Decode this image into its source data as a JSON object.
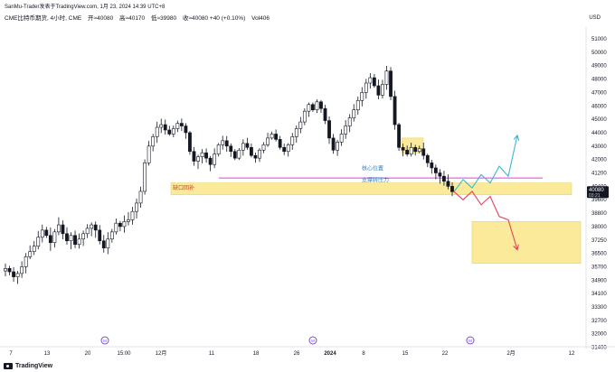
{
  "header": {
    "publisher": "SanMu-Trader发表于TradingView.com, 1月 23, 2024 14:39 UTC+8",
    "symbol": "CME比特币期货, 4小时, CME",
    "open": "开≈40080",
    "high": "高≈40170",
    "low": "低≈39980",
    "close": "收≈40080 +40 (+0.10%)",
    "volume": "Vol406",
    "currency": "USD"
  },
  "footer": {
    "logo_text": "TradingView"
  },
  "colors": {
    "candle": "#131722",
    "zone_fill": "#fbe88f",
    "level_line": "#e040d0",
    "projection_up": "#39b7d6",
    "projection_mid": "#3eb89a",
    "projection_down": "#e0455a",
    "price_badge": "#131722",
    "event_marker": "#7b4fcf"
  },
  "chart_data": {
    "type": "candlestick",
    "title": "CME比特币期货, 4小时, CME",
    "y_ticks": [
      51000,
      50000,
      49000,
      48000,
      47000,
      46000,
      45000,
      44000,
      43000,
      42000,
      41200,
      40400,
      39600,
      38800,
      38000,
      37250,
      36500,
      35700,
      34900,
      34100,
      33300,
      32700,
      32000,
      31400
    ],
    "ylim": [
      31400,
      51000
    ],
    "x_ticks": [
      "7",
      "13",
      "20",
      "15:00",
      "12月",
      "11",
      "18",
      "26",
      "2024",
      "8",
      "15",
      "22",
      "2月",
      "12"
    ],
    "x_marker_labels": [
      "7",
      "13",
      "20",
      "15:00",
      "12月",
      "11",
      "18",
      "26",
      "2024",
      "8",
      "15",
      "22",
      "2月",
      "12"
    ],
    "event_marker_symbol": "M",
    "price_path": [
      35600,
      35400,
      35100,
      35300,
      35700,
      36300,
      36600,
      36900,
      37400,
      37800,
      37500,
      37100,
      37700,
      38100,
      37600,
      37200,
      37500,
      37000,
      37300,
      37600,
      37900,
      38100,
      37800,
      37200,
      36800,
      37300,
      37700,
      38200,
      38000,
      38300,
      38400,
      38900,
      39400,
      40100,
      41800,
      43000,
      43700,
      44400,
      44600,
      44200,
      43900,
      44300,
      44700,
      44500,
      44000,
      42600,
      41900,
      42200,
      42500,
      42100,
      41700,
      42400,
      43100,
      43400,
      43000,
      42600,
      42100,
      42700,
      43200,
      42900,
      42300,
      42100,
      42700,
      43100,
      43600,
      43900,
      43500,
      42900,
      42600,
      43100,
      43700,
      44300,
      44800,
      45600,
      46100,
      45700,
      46300,
      45800,
      44900,
      43600,
      42700,
      43300,
      43900,
      44500,
      45100,
      45700,
      46400,
      47000,
      47700,
      48100,
      47500,
      46800,
      47600,
      48600,
      46700,
      44600,
      42900,
      42700,
      42400,
      42900,
      42600,
      42800,
      42300,
      41800,
      41500,
      41200,
      41000,
      40700,
      40400,
      40080
    ],
    "annotations": [
      "缺口回补",
      "核心位置",
      "支撑转压力"
    ],
    "zones": [
      {
        "name": "gap-fill-zone",
        "y": [
          39900,
          40600
        ]
      },
      {
        "name": "target-zone",
        "y": [
          35900,
          38300
        ]
      },
      {
        "name": "rejection-zone",
        "y": [
          42500,
          43600
        ]
      }
    ],
    "key_level": 40900,
    "last_price": 40080,
    "last_price_label": "40080",
    "last_price_timer": "03:21",
    "projections": [
      {
        "name": "bull-path",
        "y": [
          40080,
          40800,
          40300,
          41100,
          40600,
          41600,
          41000,
          43800
        ]
      },
      {
        "name": "bear-path",
        "y": [
          40080,
          39600,
          40100,
          39300,
          39800,
          38600,
          38400,
          36700
        ]
      }
    ],
    "grid": false,
    "legend": "none"
  }
}
